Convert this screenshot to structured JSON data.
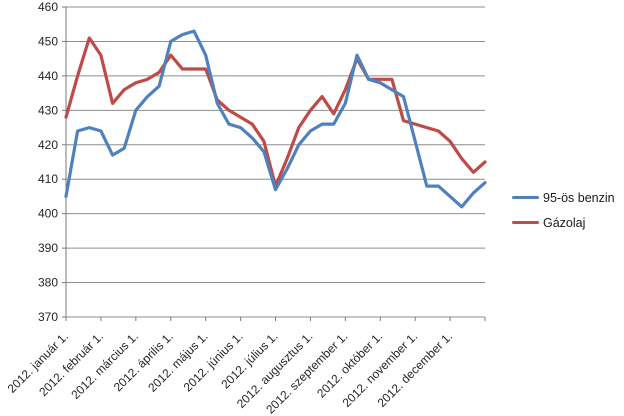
{
  "chart_data": {
    "type": "line",
    "title": "",
    "xlabel": "",
    "ylabel": "",
    "x": [
      "2012.01.01",
      "2012.01.11",
      "2012.01.21",
      "2012.02.01",
      "2012.02.11",
      "2012.02.21",
      "2012.03.01",
      "2012.03.11",
      "2012.03.21",
      "2012.04.01",
      "2012.04.11",
      "2012.04.21",
      "2012.05.01",
      "2012.05.11",
      "2012.05.21",
      "2012.06.01",
      "2012.06.11",
      "2012.06.21",
      "2012.07.01",
      "2012.07.11",
      "2012.07.21",
      "2012.08.01",
      "2012.08.11",
      "2012.08.21",
      "2012.09.01",
      "2012.09.11",
      "2012.09.21",
      "2012.10.01",
      "2012.10.11",
      "2012.10.21",
      "2012.11.01",
      "2012.11.11",
      "2012.11.21",
      "2012.12.01",
      "2012.12.11",
      "2012.12.21",
      "2013.01.01"
    ],
    "x_axis_tick_labels": [
      "2012. január 1.",
      "2012. február 1.",
      "2012. március 1.",
      "2012. április 1.",
      "2012. május 1.",
      "2012. június 1.",
      "2012. július 1.",
      "2012. augusztus 1.",
      "2012. szeptember 1.",
      "2012. október 1.",
      "2012. november 1.",
      "2012. december 1."
    ],
    "series": [
      {
        "name": "95-ös benzin",
        "color": "#4F81BD",
        "values": [
          405,
          424,
          425,
          424,
          417,
          419,
          430,
          434,
          437,
          450,
          452,
          453,
          446,
          432,
          426,
          425,
          422,
          418,
          407,
          413,
          420,
          424,
          426,
          426,
          432,
          446,
          439,
          438,
          436,
          434,
          421,
          408,
          408,
          405,
          402,
          406,
          409
        ]
      },
      {
        "name": "Gázolaj",
        "color": "#BE4B48",
        "values": [
          428,
          440,
          451,
          446,
          432,
          436,
          438,
          439,
          441,
          446,
          442,
          442,
          442,
          433,
          430,
          428,
          426,
          421,
          408,
          416,
          425,
          430,
          434,
          429,
          436,
          445,
          439,
          439,
          439,
          427,
          426,
          425,
          424,
          421,
          416,
          412,
          415
        ]
      }
    ],
    "ylim": [
      370,
      460
    ],
    "ytick_step": 10,
    "ytick_labels": [
      "370",
      "380",
      "390",
      "400",
      "410",
      "420",
      "430",
      "440",
      "450",
      "460"
    ],
    "grid": "horizontal",
    "legend_position": "right",
    "line_width": 3.2,
    "colors": {
      "gridline": "#8E8E8E",
      "axis": "#7A7A7A",
      "tick_text": "#262626",
      "background": "#FFFFFF"
    }
  }
}
